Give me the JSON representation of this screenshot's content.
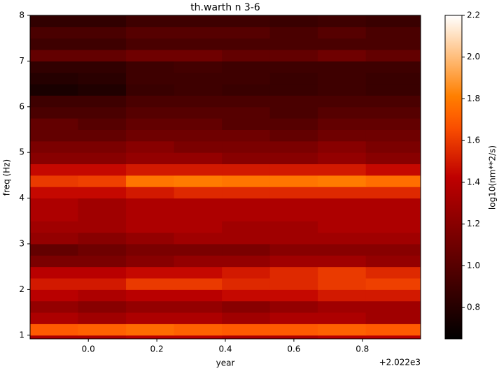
{
  "chart_data": {
    "type": "heatmap",
    "title": "th.warth n 3-6",
    "x_label": "year",
    "x_offset_label": "+2.022e3",
    "y_label": "freq (Hz)",
    "colorbar_label": "log10(nm**2/s)",
    "colormap": "gist_heat",
    "xlim": [
      -0.17,
      0.97
    ],
    "ylim": [
      0.92,
      8
    ],
    "clim": [
      0.65,
      2.2
    ],
    "xticks": [
      {
        "value": 0,
        "label": "0.0"
      },
      0.2,
      0.4,
      0.6,
      0.8
    ],
    "yticks": [
      1,
      2,
      3,
      4,
      5,
      6,
      7,
      8
    ],
    "cticks": [
      0.8,
      {
        "value": 1,
        "label": "1.0"
      },
      1.2,
      1.4,
      1.6,
      1.8,
      {
        "value": 2,
        "label": "2.0"
      },
      2.2
    ],
    "xbins": [
      -0.17,
      -0.03,
      0.11,
      0.25,
      0.39,
      0.53,
      0.67,
      0.81,
      0.97
    ],
    "ybins": [
      0.92,
      1.0,
      1.25,
      1.5,
      1.75,
      2.0,
      2.25,
      2.5,
      2.75,
      3.0,
      3.25,
      3.5,
      3.75,
      4.0,
      4.25,
      4.5,
      4.75,
      5.0,
      5.25,
      5.5,
      5.75,
      6.0,
      6.25,
      6.5,
      6.75,
      7.0,
      7.25,
      7.5,
      7.75,
      8.0
    ],
    "z": [
      [
        1.35,
        1.35,
        1.4,
        1.4,
        1.35,
        1.35,
        1.4,
        1.4
      ],
      [
        1.7,
        1.72,
        1.75,
        1.72,
        1.7,
        1.7,
        1.72,
        1.7
      ],
      [
        1.35,
        1.3,
        1.35,
        1.35,
        1.3,
        1.35,
        1.35,
        1.3
      ],
      [
        1.25,
        1.2,
        1.25,
        1.25,
        1.2,
        1.25,
        1.3,
        1.3
      ],
      [
        1.4,
        1.35,
        1.4,
        1.4,
        1.45,
        1.45,
        1.5,
        1.5
      ],
      [
        1.5,
        1.5,
        1.6,
        1.6,
        1.55,
        1.55,
        1.6,
        1.62
      ],
      [
        1.4,
        1.4,
        1.45,
        1.45,
        1.5,
        1.55,
        1.6,
        1.55
      ],
      [
        1.15,
        1.15,
        1.2,
        1.25,
        1.25,
        1.3,
        1.3,
        1.25
      ],
      [
        1.05,
        1.1,
        1.15,
        1.15,
        1.15,
        1.2,
        1.2,
        1.2
      ],
      [
        1.25,
        1.2,
        1.25,
        1.3,
        1.3,
        1.3,
        1.3,
        1.3
      ],
      [
        1.3,
        1.3,
        1.35,
        1.35,
        1.3,
        1.3,
        1.35,
        1.35
      ],
      [
        1.35,
        1.3,
        1.35,
        1.35,
        1.35,
        1.35,
        1.35,
        1.35
      ],
      [
        1.35,
        1.3,
        1.35,
        1.35,
        1.35,
        1.35,
        1.35,
        1.35
      ],
      [
        1.45,
        1.45,
        1.5,
        1.55,
        1.55,
        1.55,
        1.55,
        1.55
      ],
      [
        1.6,
        1.62,
        1.78,
        1.8,
        1.78,
        1.78,
        1.8,
        1.76
      ],
      [
        1.45,
        1.45,
        1.5,
        1.5,
        1.5,
        1.5,
        1.5,
        1.45
      ],
      [
        1.2,
        1.2,
        1.25,
        1.25,
        1.2,
        1.2,
        1.25,
        1.2
      ],
      [
        1.15,
        1.15,
        1.2,
        1.15,
        1.15,
        1.15,
        1.2,
        1.15
      ],
      [
        1.05,
        1.05,
        1.1,
        1.1,
        1.1,
        1.05,
        1.1,
        1.1
      ],
      [
        1.05,
        1.0,
        1.05,
        1.05,
        1.0,
        1.0,
        1.05,
        1.05
      ],
      [
        0.95,
        0.95,
        1.0,
        1.0,
        1.0,
        0.95,
        1.0,
        1.0
      ],
      [
        0.9,
        0.9,
        0.95,
        0.95,
        0.95,
        0.95,
        0.95,
        0.95
      ],
      [
        0.75,
        0.78,
        0.88,
        0.9,
        0.88,
        0.88,
        0.9,
        0.88
      ],
      [
        0.8,
        0.82,
        0.9,
        0.9,
        0.9,
        0.88,
        0.9,
        0.88
      ],
      [
        0.85,
        0.85,
        0.9,
        0.92,
        0.9,
        0.9,
        0.9,
        0.9
      ],
      [
        1.05,
        1.05,
        1.1,
        1.1,
        1.05,
        1.05,
        1.1,
        1.05
      ],
      [
        0.9,
        0.9,
        0.95,
        0.95,
        0.95,
        0.95,
        0.95,
        0.95
      ],
      [
        0.95,
        0.95,
        1.0,
        1.0,
        1.0,
        0.95,
        1.0,
        0.95
      ],
      [
        0.85,
        0.85,
        0.9,
        0.9,
        0.9,
        0.88,
        0.9,
        0.88
      ]
    ]
  }
}
